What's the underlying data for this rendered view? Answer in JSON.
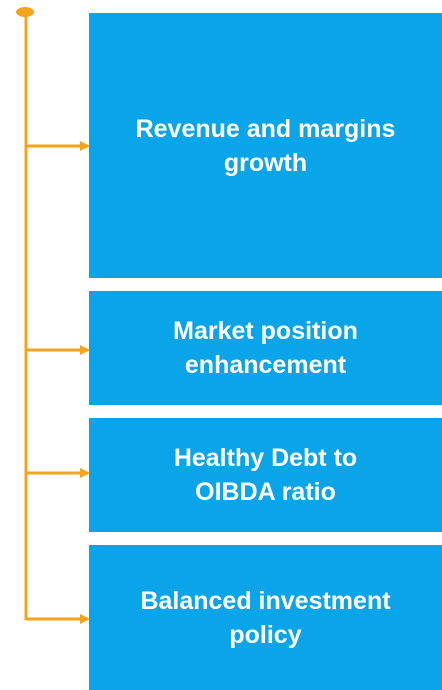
{
  "nodes": [
    {
      "lines": [
        "Revenue and margins",
        "growth"
      ]
    },
    {
      "lines": [
        "Market position",
        "enhancement"
      ]
    },
    {
      "lines": [
        "Healthy Debt to",
        "OIBDA ratio"
      ]
    },
    {
      "lines": [
        "Balanced investment",
        "policy"
      ]
    }
  ]
}
